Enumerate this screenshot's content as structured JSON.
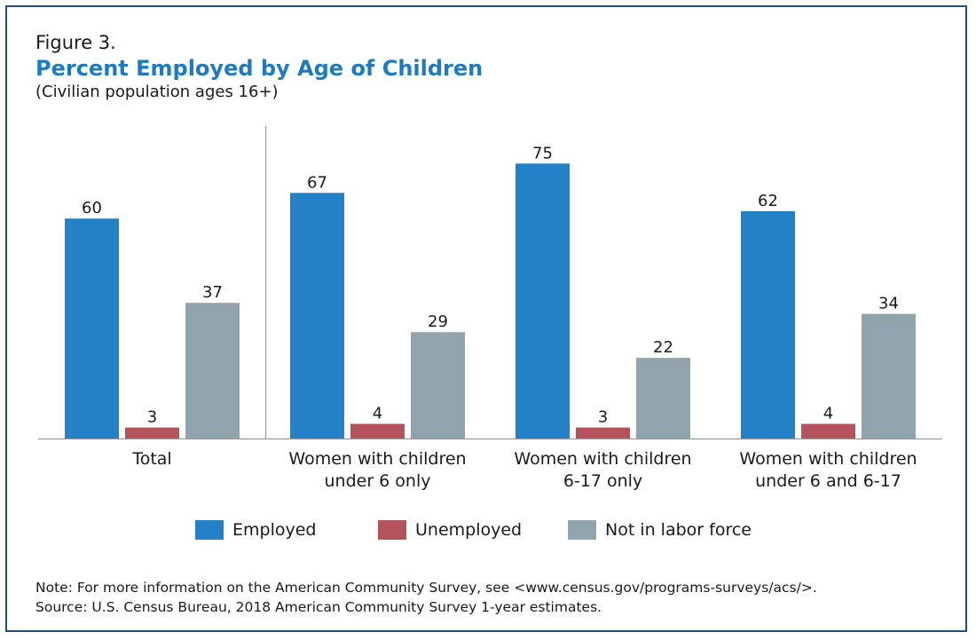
{
  "figure_label": "Figure 3.",
  "title": "Percent Employed by Age of Children",
  "subtitle": "(Civilian population ages 16+)",
  "colors": {
    "employed": "#2481c7",
    "unemployed": "#b5535c",
    "not_in_labor_force": "#91a3ad",
    "title": "#1f7ac4",
    "frame": "#1f4e79"
  },
  "chart_data": {
    "type": "bar",
    "categories": [
      [
        "Total"
      ],
      [
        "Women with children",
        "under 6 only"
      ],
      [
        "Women with children",
        "6-17 only"
      ],
      [
        "Women with children",
        "under 6 and 6-17"
      ]
    ],
    "series": [
      {
        "name": "Employed",
        "values": [
          60,
          67,
          75,
          62
        ]
      },
      {
        "name": "Unemployed",
        "values": [
          3,
          4,
          3,
          4
        ]
      },
      {
        "name": "Not in labor force",
        "values": [
          37,
          29,
          22,
          34
        ]
      }
    ],
    "ylim": [
      0,
      80
    ],
    "grid": false,
    "legend": "bottom",
    "data_labels": true
  },
  "legend": {
    "items": [
      {
        "label": "Employed"
      },
      {
        "label": "Unemployed"
      },
      {
        "label": "Not in labor force"
      }
    ]
  },
  "note": {
    "line1": "Note: For more information on the American Community Survey, see <www.census.gov/programs-surveys/acs/>.",
    "line2": "Source: U.S. Census Bureau, 2018 American Community Survey 1-year estimates."
  }
}
